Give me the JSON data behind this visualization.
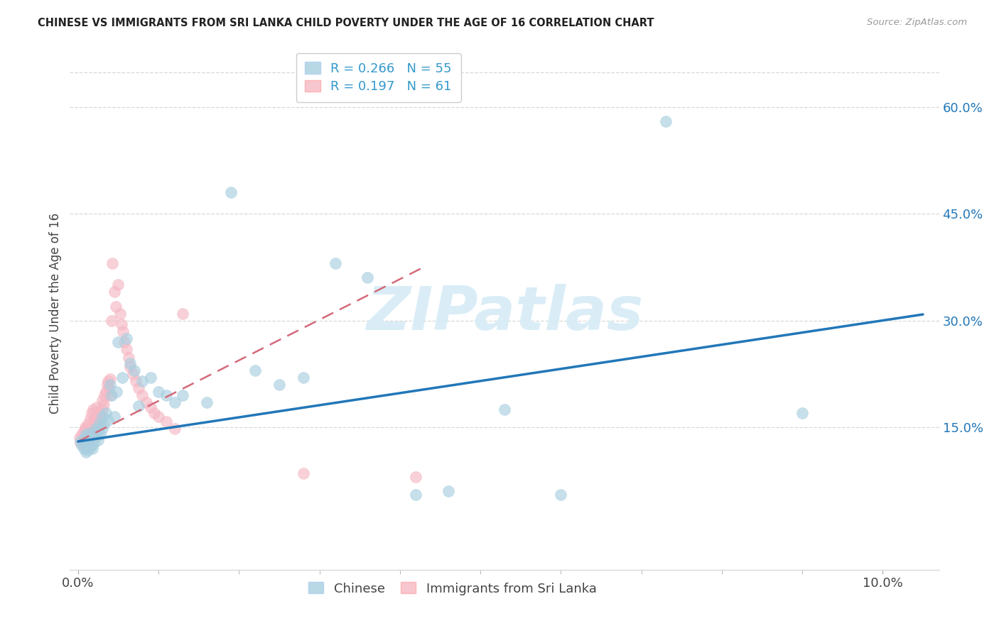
{
  "title": "CHINESE VS IMMIGRANTS FROM SRI LANKA CHILD POVERTY UNDER THE AGE OF 16 CORRELATION CHART",
  "source": "Source: ZipAtlas.com",
  "ylabel": "Child Poverty Under the Age of 16",
  "ylim_low": -0.05,
  "ylim_high": 0.67,
  "xlim_low": -0.001,
  "xlim_high": 0.107,
  "ytick_vals": [
    0.15,
    0.3,
    0.45,
    0.6
  ],
  "ytick_labels": [
    "15.0%",
    "30.0%",
    "45.0%",
    "60.0%"
  ],
  "color_chinese": "#a8cfe0",
  "color_sri": "#f5b8c4",
  "color_chinese_line": "#2177b8",
  "color_sri_line": "#d4697a",
  "color_grid": "#d8d8d8",
  "R_chinese": "0.266",
  "N_chinese": "55",
  "R_sri": "0.197",
  "N_sri": "61",
  "legend_color": "#3399cc",
  "legend_N_color": "#cc2222",
  "watermark": "ZIPatlas",
  "watermark_color": "#d6ecf7",
  "chinese_x": [
    0.0003,
    0.0005,
    0.0007,
    0.0008,
    0.001,
    0.001,
    0.0012,
    0.0013,
    0.0015,
    0.0015,
    0.0017,
    0.0018,
    0.0018,
    0.002,
    0.002,
    0.0022,
    0.0023,
    0.0025,
    0.0025,
    0.0027,
    0.0028,
    0.003,
    0.003,
    0.0032,
    0.0035,
    0.0037,
    0.004,
    0.0042,
    0.0045,
    0.0048,
    0.005,
    0.0055,
    0.006,
    0.0065,
    0.007,
    0.0075,
    0.008,
    0.009,
    0.01,
    0.011,
    0.012,
    0.013,
    0.016,
    0.019,
    0.022,
    0.025,
    0.028,
    0.032,
    0.036,
    0.042,
    0.046,
    0.053,
    0.06,
    0.073,
    0.09
  ],
  "chinese_y": [
    0.13,
    0.125,
    0.12,
    0.135,
    0.115,
    0.14,
    0.118,
    0.13,
    0.122,
    0.142,
    0.125,
    0.135,
    0.12,
    0.138,
    0.128,
    0.148,
    0.138,
    0.145,
    0.132,
    0.155,
    0.14,
    0.148,
    0.165,
    0.155,
    0.17,
    0.16,
    0.21,
    0.195,
    0.165,
    0.2,
    0.27,
    0.22,
    0.275,
    0.24,
    0.23,
    0.18,
    0.215,
    0.22,
    0.2,
    0.195,
    0.185,
    0.195,
    0.185,
    0.48,
    0.23,
    0.21,
    0.22,
    0.38,
    0.36,
    0.055,
    0.06,
    0.175,
    0.055,
    0.58,
    0.17
  ],
  "sri_x": [
    0.0002,
    0.0003,
    0.0005,
    0.0006,
    0.0007,
    0.0008,
    0.0009,
    0.001,
    0.001,
    0.0012,
    0.0013,
    0.0014,
    0.0015,
    0.0015,
    0.0017,
    0.0018,
    0.0019,
    0.002,
    0.002,
    0.0022,
    0.0023,
    0.0024,
    0.0025,
    0.0026,
    0.0027,
    0.0028,
    0.003,
    0.003,
    0.0032,
    0.0033,
    0.0035,
    0.0036,
    0.0037,
    0.0038,
    0.004,
    0.004,
    0.0042,
    0.0043,
    0.0045,
    0.0047,
    0.005,
    0.0052,
    0.0054,
    0.0056,
    0.0058,
    0.006,
    0.0063,
    0.0065,
    0.0068,
    0.0072,
    0.0075,
    0.008,
    0.0085,
    0.009,
    0.0095,
    0.01,
    0.011,
    0.012,
    0.013,
    0.028,
    0.042
  ],
  "sri_y": [
    0.135,
    0.128,
    0.14,
    0.125,
    0.145,
    0.132,
    0.15,
    0.122,
    0.148,
    0.138,
    0.155,
    0.128,
    0.162,
    0.145,
    0.17,
    0.135,
    0.175,
    0.142,
    0.16,
    0.155,
    0.178,
    0.165,
    0.168,
    0.172,
    0.158,
    0.165,
    0.188,
    0.175,
    0.182,
    0.195,
    0.2,
    0.21,
    0.215,
    0.205,
    0.218,
    0.195,
    0.3,
    0.38,
    0.34,
    0.32,
    0.35,
    0.31,
    0.295,
    0.285,
    0.27,
    0.26,
    0.248,
    0.235,
    0.225,
    0.215,
    0.205,
    0.195,
    0.185,
    0.178,
    0.17,
    0.165,
    0.158,
    0.148,
    0.31,
    0.085,
    0.08
  ]
}
